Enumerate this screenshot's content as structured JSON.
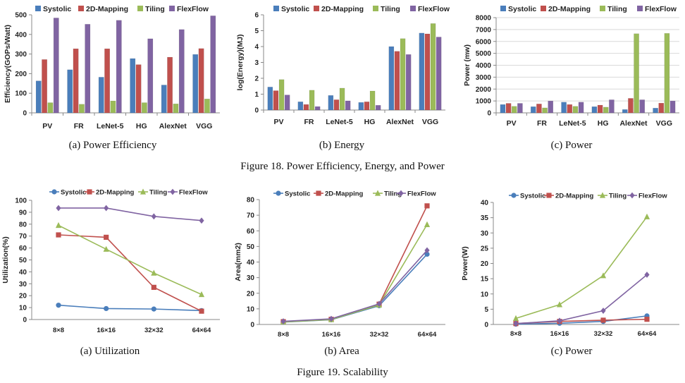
{
  "figure18": {
    "caption": "Figure 18. Power Efficiency, Energy, and Power",
    "subcaptions": [
      "(a) Power Efficiency",
      "(b) Energy",
      "(c) Power"
    ]
  },
  "figure19": {
    "caption": "Figure 19. Scalability",
    "subcaptions": [
      "(a) Utilization",
      "(b) Area",
      "(c) Power"
    ]
  },
  "colors": {
    "Systolic": "#4a7ebb",
    "2D-Mapping": "#c0504d",
    "Tiling": "#9bbb59",
    "FlexFlow": "#8064a2",
    "axis": "#888888",
    "grid": "#d9d9d9",
    "text": "#222222"
  },
  "chart_data": [
    {
      "type": "bar",
      "ylabel": "Efficiency(GOPs/Watt)",
      "xlabel": "",
      "title": "",
      "ylim": [
        0,
        500
      ],
      "yticks": [
        0,
        100,
        200,
        300,
        400,
        500
      ],
      "grid": false,
      "legend": "top",
      "categories": [
        "PV",
        "FR",
        "LeNet-5",
        "HG",
        "AlexNet",
        "VGG"
      ],
      "series": [
        {
          "name": "Systolic",
          "values": [
            163,
            220,
            182,
            277,
            142,
            298
          ]
        },
        {
          "name": "2D-Mapping",
          "values": [
            272,
            327,
            327,
            246,
            284,
            328
          ]
        },
        {
          "name": "Tiling",
          "values": [
            52,
            44,
            61,
            52,
            46,
            71
          ]
        },
        {
          "name": "FlexFlow",
          "values": [
            484,
            452,
            472,
            378,
            425,
            495
          ]
        }
      ]
    },
    {
      "type": "bar",
      "ylabel": "log(Energy)(MJ)",
      "xlabel": "",
      "title": "",
      "ylim": [
        0,
        6
      ],
      "yticks": [
        0,
        1,
        2,
        3,
        4,
        5,
        6
      ],
      "grid": false,
      "legend": "top",
      "categories": [
        "PV",
        "FR",
        "LeNet-5",
        "HG",
        "AlexNet",
        "VGG"
      ],
      "series": [
        {
          "name": "Systolic",
          "values": [
            1.45,
            0.52,
            0.92,
            0.48,
            4.0,
            4.85
          ]
        },
        {
          "name": "2D-Mapping",
          "values": [
            1.22,
            0.35,
            0.65,
            0.52,
            3.7,
            4.8
          ]
        },
        {
          "name": "Tiling",
          "values": [
            1.92,
            1.25,
            1.38,
            1.2,
            4.5,
            5.45
          ]
        },
        {
          "name": "FlexFlow",
          "values": [
            0.95,
            0.22,
            0.58,
            0.3,
            3.5,
            4.6
          ]
        }
      ]
    },
    {
      "type": "bar",
      "ylabel": "Power (mw)",
      "xlabel": "",
      "title": "",
      "ylim": [
        0,
        8000
      ],
      "yticks": [
        0,
        1000,
        2000,
        3000,
        4000,
        5000,
        6000,
        7000,
        8000
      ],
      "grid": true,
      "legend": "top",
      "categories": [
        "PV",
        "FR",
        "LeNet-5",
        "HG",
        "AlexNet",
        "VGG"
      ],
      "series": [
        {
          "name": "Systolic",
          "values": [
            700,
            520,
            900,
            520,
            280,
            400
          ]
        },
        {
          "name": "2D-Mapping",
          "values": [
            800,
            750,
            700,
            650,
            1220,
            820
          ]
        },
        {
          "name": "Tiling",
          "values": [
            550,
            420,
            550,
            480,
            6650,
            6680
          ]
        },
        {
          "name": "FlexFlow",
          "values": [
            800,
            1000,
            900,
            1100,
            1100,
            1000
          ]
        }
      ]
    },
    {
      "type": "line",
      "ylabel": "Utilization(%)",
      "xlabel": "",
      "title": "",
      "ylim": [
        0,
        100
      ],
      "yticks": [
        0,
        10,
        20,
        30,
        40,
        50,
        60,
        70,
        80,
        90,
        100
      ],
      "grid": false,
      "legend": "top",
      "categories": [
        "8×8",
        "16×16",
        "32×32",
        "64×64"
      ],
      "series": [
        {
          "name": "Systolic",
          "marker": "circle",
          "values": [
            12,
            9.2,
            8.8,
            7.5
          ]
        },
        {
          "name": "2D-Mapping",
          "marker": "square",
          "values": [
            71,
            69,
            27,
            7
          ]
        },
        {
          "name": "Tiling",
          "marker": "triangle",
          "values": [
            79,
            59,
            39,
            21
          ]
        },
        {
          "name": "FlexFlow",
          "marker": "diamond",
          "values": [
            93.5,
            93.5,
            86.5,
            83
          ]
        }
      ]
    },
    {
      "type": "line",
      "ylabel": "Area(mm2)",
      "xlabel": "",
      "title": "",
      "ylim": [
        0,
        80
      ],
      "yticks": [
        0,
        10,
        20,
        30,
        40,
        50,
        60,
        70,
        80
      ],
      "grid": false,
      "legend": "top",
      "categories": [
        "8×8",
        "16×16",
        "32×32",
        "64×64"
      ],
      "series": [
        {
          "name": "Systolic",
          "marker": "circle",
          "values": [
            1.5,
            3,
            12,
            45
          ]
        },
        {
          "name": "2D-Mapping",
          "marker": "square",
          "values": [
            1.8,
            3.3,
            13,
            76
          ]
        },
        {
          "name": "Tiling",
          "marker": "triangle",
          "values": [
            1.6,
            3.1,
            12.5,
            64
          ]
        },
        {
          "name": "FlexFlow",
          "marker": "diamond",
          "values": [
            2,
            3.6,
            13.2,
            47.5
          ]
        }
      ]
    },
    {
      "type": "line",
      "ylabel": "Power(W)",
      "xlabel": "",
      "title": "",
      "ylim": [
        0,
        40
      ],
      "yticks": [
        0,
        5,
        10,
        15,
        20,
        25,
        30,
        35,
        40
      ],
      "grid": false,
      "legend": "top",
      "categories": [
        "8×8",
        "16×16",
        "32×32",
        "64×64"
      ],
      "series": [
        {
          "name": "Systolic",
          "marker": "circle",
          "values": [
            0.1,
            0.4,
            1,
            2.8
          ]
        },
        {
          "name": "2D-Mapping",
          "marker": "square",
          "values": [
            0.3,
            1,
            1.4,
            1.7
          ]
        },
        {
          "name": "Tiling",
          "marker": "triangle",
          "values": [
            2,
            6.5,
            16,
            35.3
          ]
        },
        {
          "name": "FlexFlow",
          "marker": "diamond",
          "values": [
            0.3,
            1.2,
            4.5,
            16.3
          ]
        }
      ]
    }
  ]
}
